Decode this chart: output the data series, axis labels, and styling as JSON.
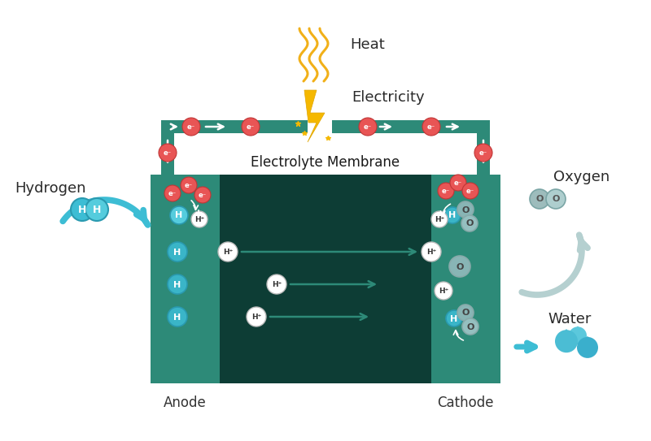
{
  "bg_color": "#ffffff",
  "teal_dark": "#0d3d35",
  "teal_mid": "#2d8a78",
  "teal_circuit": "#2d8a78",
  "red_electron": "#e85555",
  "blue_H": "#3dbdd4",
  "blue_H2": "#55ccdd",
  "gray_O": "#9dbcbc",
  "gray_O2": "#b0cbcb",
  "label_anode": "Anode",
  "label_cathode": "Cathode",
  "label_hydrogen": "Hydrogen",
  "label_oxygen": "Oxygen",
  "label_water": "Water",
  "label_heat": "Heat",
  "label_electricity": "Electricity",
  "label_membrane": "Electrolyte Membrane",
  "fig_width": 8.0,
  "fig_height": 5.43
}
